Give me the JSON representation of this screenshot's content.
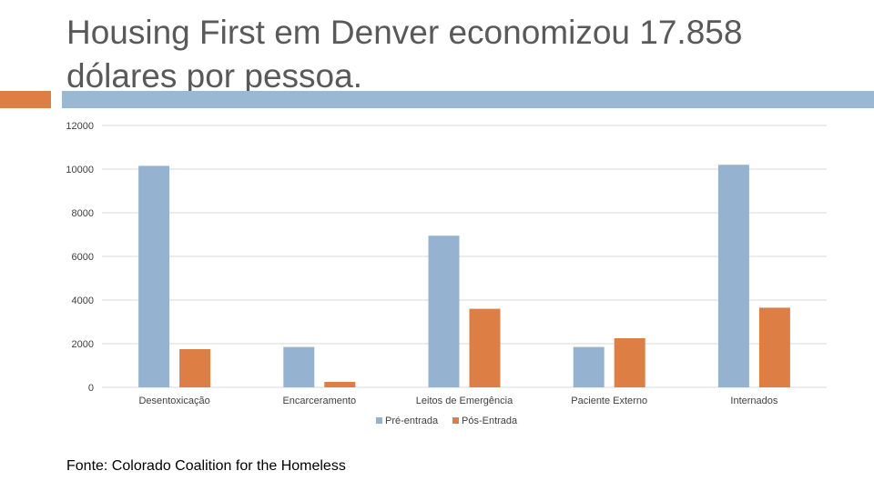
{
  "slide": {
    "title": "Housing First em Denver economizou 17.858 dólares por pessoa.",
    "source": "Fonte: Colorado Coalition for the Homeless",
    "colors": {
      "title": "#595959",
      "accent_orange": "#dd7e44",
      "accent_blue": "#98b8d4"
    }
  },
  "chart_data": {
    "type": "bar",
    "categories": [
      "Desentoxicação",
      "Encarceramento",
      "Leitos de Emergência",
      "Paciente Externo",
      "Internados"
    ],
    "series": [
      {
        "name": "Pré-entrada",
        "values": [
          10150,
          1850,
          6950,
          1850,
          10200
        ],
        "color": "#95b3d0"
      },
      {
        "name": "Pós-Entrada",
        "values": [
          1750,
          250,
          3600,
          2250,
          3650
        ],
        "color": "#dd7e44"
      }
    ],
    "ylim": [
      0,
      12000
    ],
    "yticks": [
      "0",
      "2000",
      "4000",
      "6000",
      "8000",
      "10000",
      "12000"
    ],
    "grid": true,
    "legend": "bottom"
  }
}
